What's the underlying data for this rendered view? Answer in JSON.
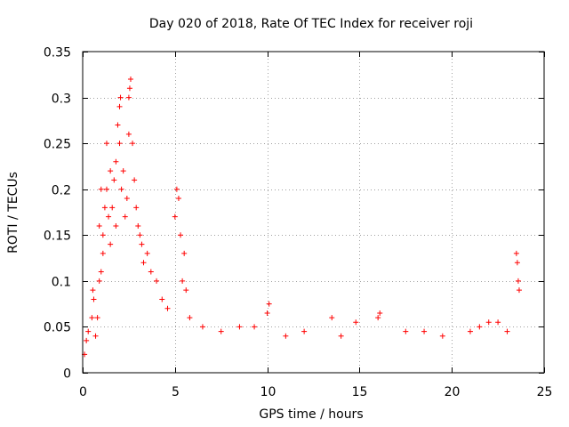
{
  "chart_data": {
    "type": "scatter",
    "title": "Day 020 of 2018, Rate Of TEC Index for receiver roji",
    "xlabel": "GPS time / hours",
    "ylabel": "ROTI / TECUs",
    "xlim": [
      0,
      25
    ],
    "ylim": [
      0,
      0.35
    ],
    "x_ticks": [
      0,
      5,
      10,
      15,
      20,
      25
    ],
    "y_ticks": [
      0,
      0.05,
      0.1,
      0.15,
      0.2,
      0.25,
      0.3,
      0.35
    ],
    "x_tick_labels": [
      "0",
      "5",
      "10",
      "15",
      "20",
      "25"
    ],
    "y_tick_labels": [
      "0",
      "0.05",
      "0.1",
      "0.15",
      "0.2",
      "0.25",
      "0.3",
      "0.35"
    ],
    "grid": true,
    "marker": "+",
    "color": "#ff0000",
    "series": [
      {
        "name": "ROTI",
        "points": [
          [
            0.1,
            0.02
          ],
          [
            0.2,
            0.035
          ],
          [
            0.3,
            0.045
          ],
          [
            0.5,
            0.06
          ],
          [
            0.55,
            0.09
          ],
          [
            0.6,
            0.08
          ],
          [
            0.7,
            0.04
          ],
          [
            0.8,
            0.06
          ],
          [
            0.9,
            0.1
          ],
          [
            0.9,
            0.16
          ],
          [
            1.0,
            0.11
          ],
          [
            1.0,
            0.2
          ],
          [
            1.1,
            0.15
          ],
          [
            1.1,
            0.13
          ],
          [
            1.2,
            0.18
          ],
          [
            1.3,
            0.25
          ],
          [
            1.3,
            0.2
          ],
          [
            1.4,
            0.17
          ],
          [
            1.5,
            0.22
          ],
          [
            1.5,
            0.14
          ],
          [
            1.6,
            0.18
          ],
          [
            1.7,
            0.21
          ],
          [
            1.8,
            0.23
          ],
          [
            1.8,
            0.16
          ],
          [
            1.9,
            0.27
          ],
          [
            2.0,
            0.25
          ],
          [
            2.0,
            0.29
          ],
          [
            2.05,
            0.3
          ],
          [
            2.1,
            0.2
          ],
          [
            2.2,
            0.22
          ],
          [
            2.3,
            0.17
          ],
          [
            2.4,
            0.19
          ],
          [
            2.5,
            0.26
          ],
          [
            2.5,
            0.3
          ],
          [
            2.55,
            0.31
          ],
          [
            2.6,
            0.32
          ],
          [
            2.7,
            0.25
          ],
          [
            2.8,
            0.21
          ],
          [
            2.9,
            0.18
          ],
          [
            3.0,
            0.16
          ],
          [
            3.1,
            0.15
          ],
          [
            3.2,
            0.14
          ],
          [
            3.3,
            0.12
          ],
          [
            3.5,
            0.13
          ],
          [
            3.7,
            0.11
          ],
          [
            4.0,
            0.1
          ],
          [
            4.3,
            0.08
          ],
          [
            4.6,
            0.07
          ],
          [
            5.0,
            0.17
          ],
          [
            5.1,
            0.2
          ],
          [
            5.2,
            0.19
          ],
          [
            5.3,
            0.15
          ],
          [
            5.4,
            0.1
          ],
          [
            5.5,
            0.13
          ],
          [
            5.6,
            0.09
          ],
          [
            5.8,
            0.06
          ],
          [
            6.5,
            0.05
          ],
          [
            7.5,
            0.045
          ],
          [
            8.5,
            0.05
          ],
          [
            9.3,
            0.05
          ],
          [
            10.0,
            0.065
          ],
          [
            10.1,
            0.075
          ],
          [
            11.0,
            0.04
          ],
          [
            12.0,
            0.045
          ],
          [
            13.5,
            0.06
          ],
          [
            14.0,
            0.04
          ],
          [
            14.8,
            0.055
          ],
          [
            16.0,
            0.06
          ],
          [
            16.1,
            0.065
          ],
          [
            17.5,
            0.045
          ],
          [
            18.5,
            0.045
          ],
          [
            19.5,
            0.04
          ],
          [
            21.0,
            0.045
          ],
          [
            21.5,
            0.05
          ],
          [
            22.0,
            0.055
          ],
          [
            22.5,
            0.055
          ],
          [
            23.0,
            0.045
          ],
          [
            23.5,
            0.13
          ],
          [
            23.55,
            0.12
          ],
          [
            23.6,
            0.1
          ],
          [
            23.65,
            0.09
          ]
        ]
      }
    ]
  }
}
